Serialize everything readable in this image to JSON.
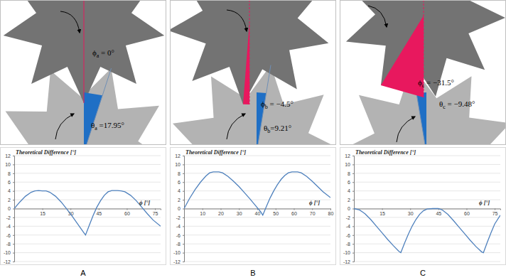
{
  "panel_labels": [
    "A",
    "B",
    "C"
  ],
  "diagrams": [
    {
      "phi": 0,
      "theta": 17.95,
      "phi_symbol": "ϕ",
      "theta_symbol": "θ",
      "subscript": "a",
      "phi_text": " = 0°",
      "theta_text": " =17.95°"
    },
    {
      "phi": -4.5,
      "theta": 9.21,
      "phi_symbol": "ϕ",
      "theta_symbol": "θ",
      "subscript": "b",
      "phi_text": " = −4.5°",
      "theta_text": "=9.21°"
    },
    {
      "phi": -31.5,
      "theta": -9.48,
      "phi_symbol": "ϕ",
      "theta_symbol": "θ",
      "subscript": "c",
      "phi_text": " = −31.5°",
      "theta_text": " = −9.48°"
    }
  ],
  "chart_data": [
    {
      "type": "line",
      "title": "Theoretical Difference [°]",
      "x_label": "ϕ [°]",
      "color": "#4f81bd",
      "grid": true,
      "x": [
        0,
        3,
        6,
        9,
        11,
        13,
        15,
        17,
        19,
        22,
        25,
        28,
        31,
        34,
        37,
        38,
        40,
        42,
        44,
        46,
        48,
        50,
        52,
        55,
        57,
        59,
        62,
        65,
        68,
        71,
        74,
        78
      ],
      "values": [
        0,
        1.5,
        2.8,
        3.7,
        4.0,
        4.1,
        4.0,
        4.0,
        3.7,
        2.8,
        1.5,
        -0.1,
        -1.8,
        -3.6,
        -5.4,
        -6.0,
        -3.8,
        -1.6,
        0.3,
        1.8,
        3.0,
        3.8,
        4.1,
        4.1,
        4.0,
        3.8,
        3.0,
        1.8,
        0.3,
        -1.2,
        -2.6,
        -4.0
      ],
      "xlim": [
        0,
        78
      ],
      "xticks": [
        15,
        30,
        45,
        60,
        75
      ],
      "ylim": [
        -12,
        12
      ],
      "yticks": [
        -12,
        -10,
        -8,
        -6,
        -4,
        -2,
        0,
        2,
        4,
        6,
        8,
        10,
        12
      ]
    },
    {
      "type": "line",
      "title": "Theoretical Difference [°]",
      "x_label": "ϕ [°]",
      "color": "#4f81bd",
      "grid": true,
      "x": [
        0,
        3,
        6,
        9,
        12,
        14,
        16,
        19,
        21,
        24,
        27,
        30,
        33,
        36,
        39,
        42,
        43,
        45,
        47,
        49,
        51,
        53,
        55,
        57,
        59,
        62,
        64,
        67,
        70,
        73,
        76,
        80
      ],
      "values": [
        0,
        2.3,
        4.3,
        6.0,
        7.4,
        8.1,
        8.3,
        8.3,
        8.1,
        7.3,
        6.2,
        5.0,
        3.6,
        2.2,
        0.7,
        -0.8,
        -1.5,
        0.5,
        2.4,
        4.0,
        5.4,
        6.6,
        7.5,
        8.1,
        8.3,
        8.3,
        8.1,
        7.3,
        6.2,
        5.0,
        3.8,
        2.5
      ],
      "xlim": [
        0,
        80
      ],
      "xticks": [
        10,
        20,
        30,
        40,
        50,
        60,
        70,
        80
      ],
      "ylim": [
        -12,
        12
      ],
      "yticks": [
        -12,
        -10,
        -8,
        -6,
        -4,
        -2,
        0,
        2,
        4,
        6,
        8,
        10,
        12
      ]
    },
    {
      "type": "line",
      "title": "Theoretical Difference [°]",
      "x_label": "ϕ [°]",
      "color": "#4f81bd",
      "grid": true,
      "x": [
        0,
        3,
        6,
        9,
        12,
        15,
        18,
        21,
        24,
        25,
        27,
        29,
        31,
        33,
        35,
        37,
        39,
        42,
        45,
        47,
        50,
        53,
        56,
        59,
        62,
        65,
        68,
        69,
        71,
        73,
        75,
        78
      ],
      "values": [
        0,
        -0.3,
        -1.2,
        -2.5,
        -4.0,
        -5.5,
        -7.0,
        -8.4,
        -9.7,
        -10,
        -7.8,
        -5.8,
        -4.0,
        -2.5,
        -1.3,
        -0.5,
        -0.1,
        0,
        0,
        -0.3,
        -1.3,
        -2.7,
        -4.2,
        -5.7,
        -7.2,
        -8.6,
        -9.8,
        -10,
        -7.7,
        -5.5,
        -3.5,
        -1.5
      ],
      "xlim": [
        0,
        78
      ],
      "xticks": [
        15,
        30,
        45,
        60,
        75
      ],
      "ylim": [
        -12,
        12
      ],
      "yticks": [
        -12,
        -10,
        -8,
        -6,
        -4,
        -2,
        0,
        2,
        4,
        6,
        8,
        10,
        12
      ]
    }
  ]
}
